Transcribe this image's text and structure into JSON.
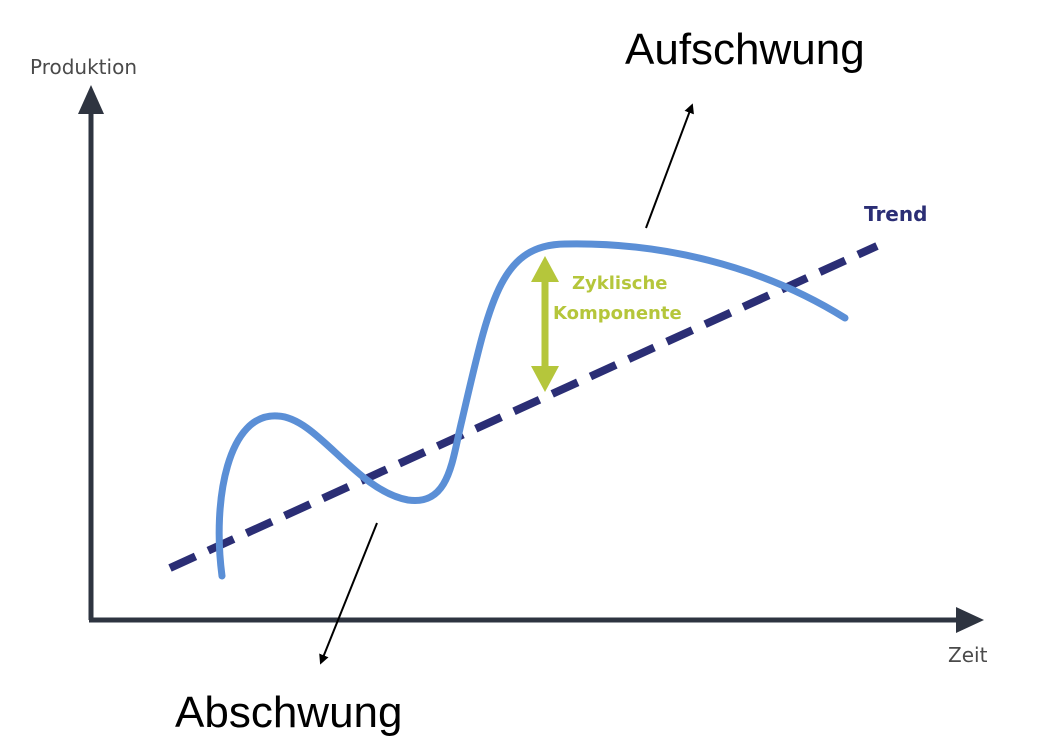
{
  "axes": {
    "y_label": "Produktion",
    "x_label": "Zeit"
  },
  "trend": {
    "label": "Trend",
    "color": "#2b2e75"
  },
  "cycle_curve": {
    "color": "#5b8fd6"
  },
  "cyclical_component": {
    "label_line1": "Zyklische",
    "label_line2": "Komponente",
    "color": "#b5c63b"
  },
  "annotations": {
    "upswing": "Aufschwung",
    "downswing": "Abschwung"
  },
  "axis_color": "#2e3440"
}
